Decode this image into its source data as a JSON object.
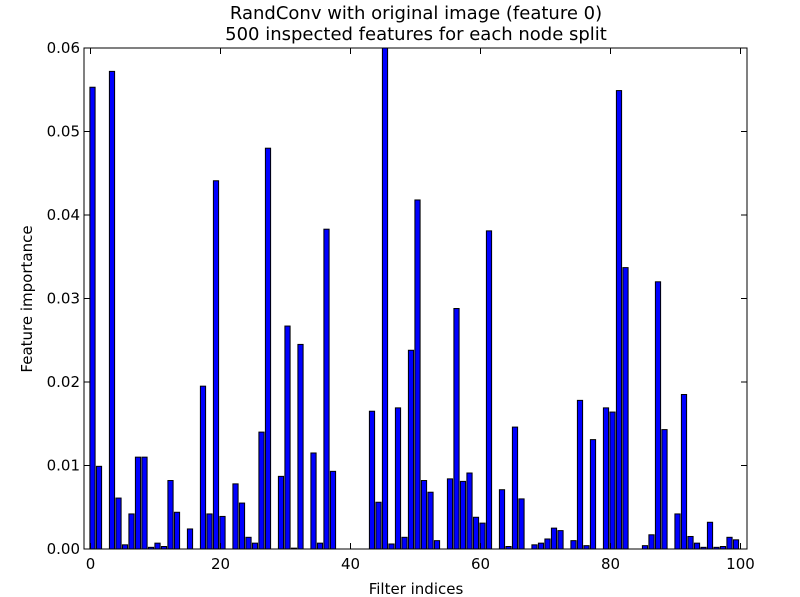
{
  "chart_data": {
    "type": "bar",
    "title_line1": "RandConv with original image (feature 0)",
    "title_line2": "500 inspected features for each node split",
    "xlabel": "Filter indices",
    "ylabel": "Feature importance",
    "xlim": [
      -1,
      101
    ],
    "ylim": [
      0,
      0.06
    ],
    "xticks": [
      0,
      20,
      40,
      60,
      80,
      100
    ],
    "xtick_labels": [
      "0",
      "20",
      "40",
      "60",
      "80",
      "100"
    ],
    "yticks": [
      0.0,
      0.01,
      0.02,
      0.03,
      0.04,
      0.05,
      0.06
    ],
    "ytick_labels": [
      "0.00",
      "0.01",
      "0.02",
      "0.03",
      "0.04",
      "0.05",
      "0.06"
    ],
    "grid": false,
    "bar_color": "#0000ff",
    "x": [
      0,
      1,
      2,
      3,
      4,
      5,
      6,
      7,
      8,
      9,
      10,
      11,
      12,
      13,
      14,
      15,
      16,
      17,
      18,
      19,
      20,
      21,
      22,
      23,
      24,
      25,
      26,
      27,
      28,
      29,
      30,
      31,
      32,
      33,
      34,
      35,
      36,
      37,
      38,
      39,
      40,
      41,
      42,
      43,
      44,
      45,
      46,
      47,
      48,
      49,
      50,
      51,
      52,
      53,
      54,
      55,
      56,
      57,
      58,
      59,
      60,
      61,
      62,
      63,
      64,
      65,
      66,
      67,
      68,
      69,
      70,
      71,
      72,
      73,
      74,
      75,
      76,
      77,
      78,
      79,
      80,
      81,
      82,
      83,
      84,
      85,
      86,
      87,
      88,
      89,
      90,
      91,
      92,
      93,
      94,
      95,
      96,
      97,
      98,
      99
    ],
    "values": [
      0.0553,
      0.0099,
      0.0,
      0.0572,
      0.0061,
      0.0005,
      0.0042,
      0.011,
      0.011,
      0.0002,
      0.0007,
      0.0003,
      0.0082,
      0.0044,
      0.0,
      0.0024,
      0.0,
      0.0195,
      0.0042,
      0.0441,
      0.0039,
      0.0,
      0.0078,
      0.0055,
      0.0014,
      0.0007,
      0.014,
      0.048,
      0.0,
      0.0087,
      0.0267,
      0.0001,
      0.0245,
      0.0,
      0.0115,
      0.0007,
      0.0383,
      0.0093,
      0.0,
      0.0,
      0.0,
      0.0,
      0.0,
      0.0165,
      0.0056,
      0.0601,
      0.0006,
      0.0169,
      0.0014,
      0.0238,
      0.0418,
      0.0082,
      0.0068,
      0.001,
      0.0,
      0.0084,
      0.0288,
      0.0081,
      0.0091,
      0.0038,
      0.0031,
      0.0381,
      0.0,
      0.0071,
      0.0003,
      0.0146,
      0.006,
      0.0,
      0.0005,
      0.0007,
      0.0012,
      0.0025,
      0.0022,
      0.0,
      0.001,
      0.0178,
      0.0004,
      0.0131,
      0.0,
      0.0169,
      0.0164,
      0.0549,
      0.0337,
      0.0,
      0.0,
      0.0004,
      0.0017,
      0.032,
      0.0143,
      0.0,
      0.0042,
      0.0185,
      0.0015,
      0.0007,
      0.0002,
      0.0032,
      0.0002,
      0.0003,
      0.0014,
      0.0011
    ]
  }
}
